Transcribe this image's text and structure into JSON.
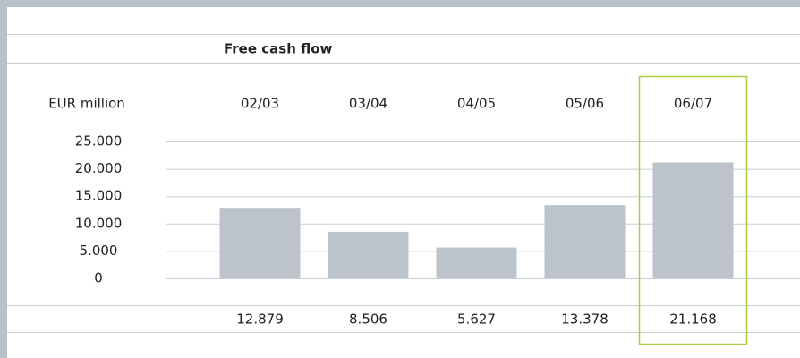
{
  "chart_data": {
    "type": "bar",
    "title": "Free cash flow",
    "y_label": "EUR million",
    "categories": [
      "02/03",
      "03/04",
      "04/05",
      "05/06",
      "06/07"
    ],
    "values": [
      12879,
      8506,
      5627,
      13378,
      21168
    ],
    "value_labels": [
      "12.879",
      "8.506",
      "5.627",
      "13.378",
      "21.168"
    ],
    "color": "#bcc3cb",
    "ylim": [
      0,
      25000
    ],
    "yticks": [
      {
        "value": 0,
        "label": "0"
      },
      {
        "value": 5000,
        "label": "5.000"
      },
      {
        "value": 10000,
        "label": "10.000"
      },
      {
        "value": 15000,
        "label": "15.000"
      },
      {
        "value": 20000,
        "label": "20.000"
      },
      {
        "value": 25000,
        "label": "25.000"
      }
    ],
    "grid": true
  }
}
